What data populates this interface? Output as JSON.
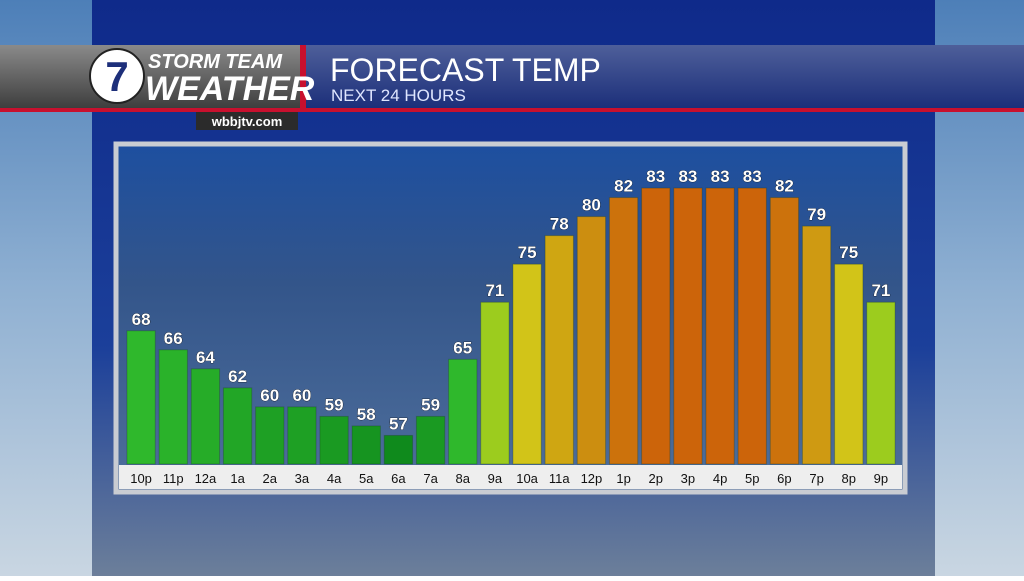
{
  "branding": {
    "logo_number": "7",
    "line1": "STORM TEAM",
    "line2": "WEATHER",
    "website": "wbbjtv.com"
  },
  "chart_data": {
    "type": "bar",
    "title": "FORECAST TEMP",
    "subtitle": "NEXT 24 HOURS",
    "categories": [
      "10p",
      "11p",
      "12a",
      "1a",
      "2a",
      "3a",
      "4a",
      "5a",
      "6a",
      "7a",
      "8a",
      "9a",
      "10a",
      "11a",
      "12p",
      "1p",
      "2p",
      "3p",
      "4p",
      "5p",
      "6p",
      "7p",
      "8p",
      "9p"
    ],
    "values": [
      68,
      66,
      64,
      62,
      60,
      60,
      59,
      58,
      57,
      59,
      65,
      71,
      75,
      78,
      80,
      82,
      83,
      83,
      83,
      83,
      82,
      79,
      75,
      71
    ],
    "colors": [
      "#2fb82c",
      "#2ab22a",
      "#26ac28",
      "#22a626",
      "#1ea024",
      "#1ea024",
      "#1a9a22",
      "#169420",
      "#0f8a1c",
      "#1a9a22",
      "#2fb82c",
      "#9ccc1e",
      "#d2c418",
      "#cfa612",
      "#cc8e10",
      "#cc720c",
      "#cc640a",
      "#cc640a",
      "#cc640a",
      "#cc640a",
      "#cc720c",
      "#cf9a12",
      "#d2c418",
      "#9ccc1e"
    ],
    "ylim": [
      54,
      87
    ]
  }
}
